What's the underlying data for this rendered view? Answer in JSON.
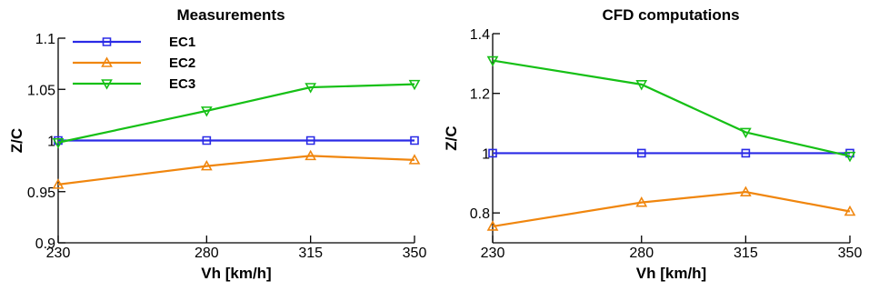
{
  "chart_data": [
    {
      "type": "line",
      "title": "Measurements",
      "xlabel": "Vh [km/h]",
      "ylabel": "Z/C",
      "x": [
        230,
        280,
        315,
        350
      ],
      "x_ticks": [
        "230",
        "280",
        "315",
        "350"
      ],
      "ylim": [
        0.9,
        1.1
      ],
      "y_ticks": [
        "0.9",
        "0.95",
        "1",
        "1.05",
        "1.1"
      ],
      "grid": false,
      "legend": "top-left",
      "series": [
        {
          "name": "EC1",
          "color": "#2a2ae6",
          "marker": "square",
          "values": [
            1.0,
            1.0,
            1.0,
            1.0
          ]
        },
        {
          "name": "EC2",
          "color": "#f0860e",
          "marker": "triangle-up",
          "values": [
            0.957,
            0.975,
            0.985,
            0.981
          ]
        },
        {
          "name": "EC3",
          "color": "#16c016",
          "marker": "triangle-down",
          "values": [
            0.998,
            1.029,
            1.052,
            1.055
          ]
        }
      ]
    },
    {
      "type": "line",
      "title": "CFD computations",
      "xlabel": "Vh [km/h]",
      "ylabel": "Z/C",
      "x": [
        230,
        280,
        315,
        350
      ],
      "x_ticks": [
        "230",
        "280",
        "315",
        "350"
      ],
      "ylim": [
        0.7,
        1.4
      ],
      "y_ticks": [
        "0.8",
        "1",
        "1.2",
        "1.4"
      ],
      "y_tick_values": [
        0.8,
        1.0,
        1.2,
        1.4
      ],
      "grid": false,
      "legend": "none",
      "series": [
        {
          "color": "#2a2ae6",
          "marker": "square",
          "values": [
            1.0,
            1.0,
            1.0,
            1.0
          ]
        },
        {
          "color": "#f0860e",
          "marker": "triangle-up",
          "values": [
            0.755,
            0.835,
            0.87,
            0.805
          ]
        },
        {
          "color": "#16c016",
          "marker": "triangle-down",
          "values": [
            1.31,
            1.23,
            1.07,
            0.99
          ]
        }
      ]
    }
  ]
}
